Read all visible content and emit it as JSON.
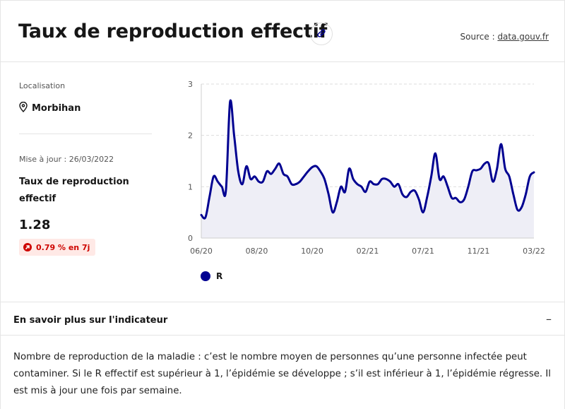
{
  "header": {
    "title": "Taux de reproduction effectif",
    "source_prefix": "Source : ",
    "source_link": "data.gouv.fr",
    "link_icon": "link-icon"
  },
  "sidebar": {
    "location_label": "Localisation",
    "location_icon": "map-pin-icon",
    "location": "Morbihan",
    "updated": "Mise à jour : 26/03/2022",
    "indicator_name": "Taux de reproduction effectif",
    "value": "1.28",
    "change_icon": "arrow-up-right-icon",
    "change": "0.79 % en 7j",
    "change_color": "#ce0500"
  },
  "colors": {
    "accent": "#000091",
    "area": "#eeeef6"
  },
  "chart_data": {
    "type": "area",
    "xlabel": "",
    "ylabel": "",
    "ylim": [
      0,
      3
    ],
    "yticks": [
      "0",
      "1",
      "2",
      "3"
    ],
    "xticks": [
      "06/20",
      "08/20",
      "10/20",
      "02/21",
      "07/21",
      "11/21",
      "03/22"
    ],
    "grid": true,
    "legend_position": "bottom-left",
    "series": [
      {
        "name": "R",
        "color": "#000091",
        "points": [
          [
            0.0,
            0.45
          ],
          [
            0.5,
            0.4
          ],
          [
            1.0,
            0.8
          ],
          [
            1.5,
            1.2
          ],
          [
            2.0,
            1.1
          ],
          [
            2.5,
            1.0
          ],
          [
            3.0,
            0.93
          ],
          [
            3.5,
            2.65
          ],
          [
            4.0,
            2.0
          ],
          [
            4.5,
            1.3
          ],
          [
            5.0,
            1.05
          ],
          [
            5.5,
            1.4
          ],
          [
            6.0,
            1.15
          ],
          [
            6.5,
            1.2
          ],
          [
            7.0,
            1.1
          ],
          [
            7.5,
            1.1
          ],
          [
            8.0,
            1.3
          ],
          [
            8.5,
            1.25
          ],
          [
            9.0,
            1.35
          ],
          [
            9.5,
            1.45
          ],
          [
            10.0,
            1.25
          ],
          [
            10.5,
            1.2
          ],
          [
            11.0,
            1.05
          ],
          [
            11.5,
            1.05
          ],
          [
            12.0,
            1.1
          ],
          [
            12.5,
            1.2
          ],
          [
            13.0,
            1.3
          ],
          [
            13.5,
            1.38
          ],
          [
            14.0,
            1.4
          ],
          [
            14.5,
            1.3
          ],
          [
            15.0,
            1.15
          ],
          [
            15.5,
            0.85
          ],
          [
            16.0,
            0.5
          ],
          [
            16.5,
            0.7
          ],
          [
            17.0,
            1.0
          ],
          [
            17.5,
            0.9
          ],
          [
            18.0,
            1.35
          ],
          [
            18.5,
            1.15
          ],
          [
            19.0,
            1.05
          ],
          [
            19.5,
            1.0
          ],
          [
            20.0,
            0.9
          ],
          [
            20.5,
            1.1
          ],
          [
            21.0,
            1.05
          ],
          [
            21.5,
            1.05
          ],
          [
            22.0,
            1.15
          ],
          [
            22.5,
            1.15
          ],
          [
            23.0,
            1.1
          ],
          [
            23.5,
            1.0
          ],
          [
            24.0,
            1.05
          ],
          [
            24.5,
            0.85
          ],
          [
            25.0,
            0.8
          ],
          [
            25.5,
            0.9
          ],
          [
            26.0,
            0.92
          ],
          [
            26.5,
            0.75
          ],
          [
            27.0,
            0.5
          ],
          [
            27.5,
            0.8
          ],
          [
            28.0,
            1.2
          ],
          [
            28.5,
            1.65
          ],
          [
            29.0,
            1.15
          ],
          [
            29.5,
            1.2
          ],
          [
            30.0,
            1.0
          ],
          [
            30.5,
            0.78
          ],
          [
            31.0,
            0.78
          ],
          [
            31.5,
            0.7
          ],
          [
            32.0,
            0.75
          ],
          [
            32.5,
            1.0
          ],
          [
            33.0,
            1.3
          ],
          [
            33.5,
            1.32
          ],
          [
            34.0,
            1.35
          ],
          [
            34.5,
            1.45
          ],
          [
            35.0,
            1.45
          ],
          [
            35.5,
            1.1
          ],
          [
            36.0,
            1.35
          ],
          [
            36.5,
            1.83
          ],
          [
            37.0,
            1.35
          ],
          [
            37.5,
            1.2
          ],
          [
            38.0,
            0.85
          ],
          [
            38.5,
            0.55
          ],
          [
            39.0,
            0.6
          ],
          [
            39.5,
            0.85
          ],
          [
            40.0,
            1.2
          ],
          [
            40.5,
            1.28
          ]
        ]
      }
    ]
  },
  "learn_more": {
    "heading": "En savoir plus sur l'indicateur",
    "toggle": "–",
    "text": "Nombre de reproduction de la maladie : c’est le nombre moyen de personnes qu’une personne infectée peut contaminer. Si le R effectif est supérieur à 1, l’épidémie se développe ; s’il est inférieur à 1, l’épidémie régresse. Il est mis à jour une fois par semaine."
  }
}
